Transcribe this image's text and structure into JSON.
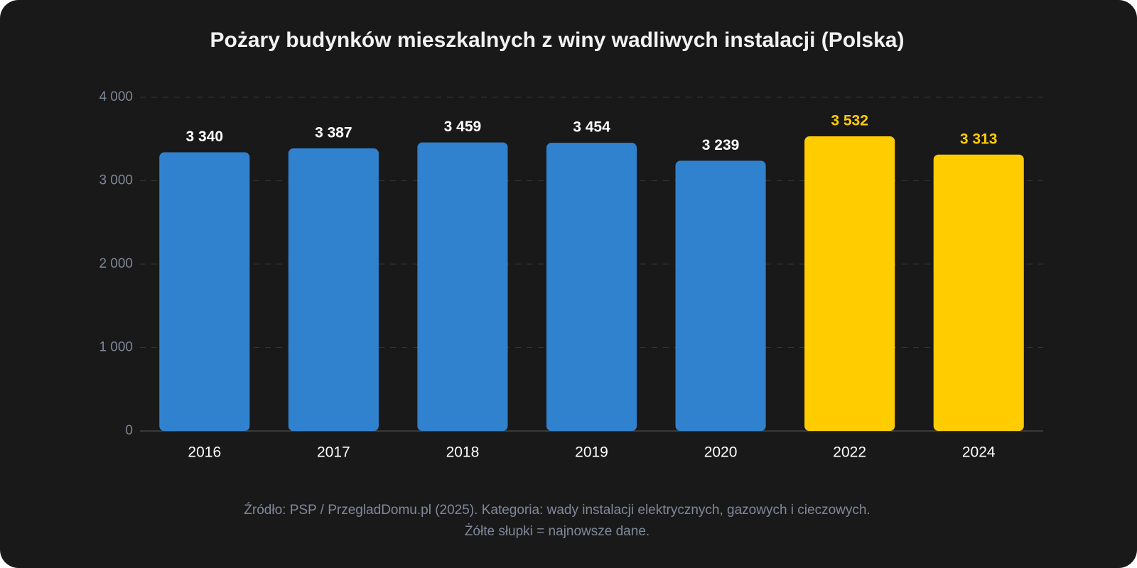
{
  "chart_data": {
    "type": "bar",
    "title": "Pożary budynków mieszkalnych z winy wadliwych instalacji (Polska)",
    "categories": [
      "2016",
      "2017",
      "2018",
      "2019",
      "2020",
      "2022",
      "2024"
    ],
    "values": [
      3340,
      3387,
      3459,
      3454,
      3239,
      3532,
      3313
    ],
    "value_labels": [
      "3 340",
      "3 387",
      "3 459",
      "3 454",
      "3 239",
      "3 532",
      "3 313"
    ],
    "colors": [
      "#3182ce",
      "#3182ce",
      "#3182ce",
      "#3182ce",
      "#3182ce",
      "#ffcc00",
      "#ffcc00"
    ],
    "value_label_colors": [
      "#ffffff",
      "#ffffff",
      "#ffffff",
      "#ffffff",
      "#ffffff",
      "#ffcc00",
      "#ffcc00"
    ],
    "ylim": [
      0,
      4000
    ],
    "yticks": [
      0,
      {
        "value": 1000,
        "label": "1 000"
      },
      {
        "value": 2000,
        "label": "2 000"
      },
      {
        "value": 3000,
        "label": "3 000"
      },
      {
        "value": 4000,
        "label": "4 000"
      }
    ],
    "grid": true,
    "notes": [
      "Źródło: PSP / PrzegladDomu.pl (2025). Kategoria: wady instalacji elektrycznych, gazowych i cieczowych.",
      "Żółte słupki = najnowsze dane."
    ]
  }
}
